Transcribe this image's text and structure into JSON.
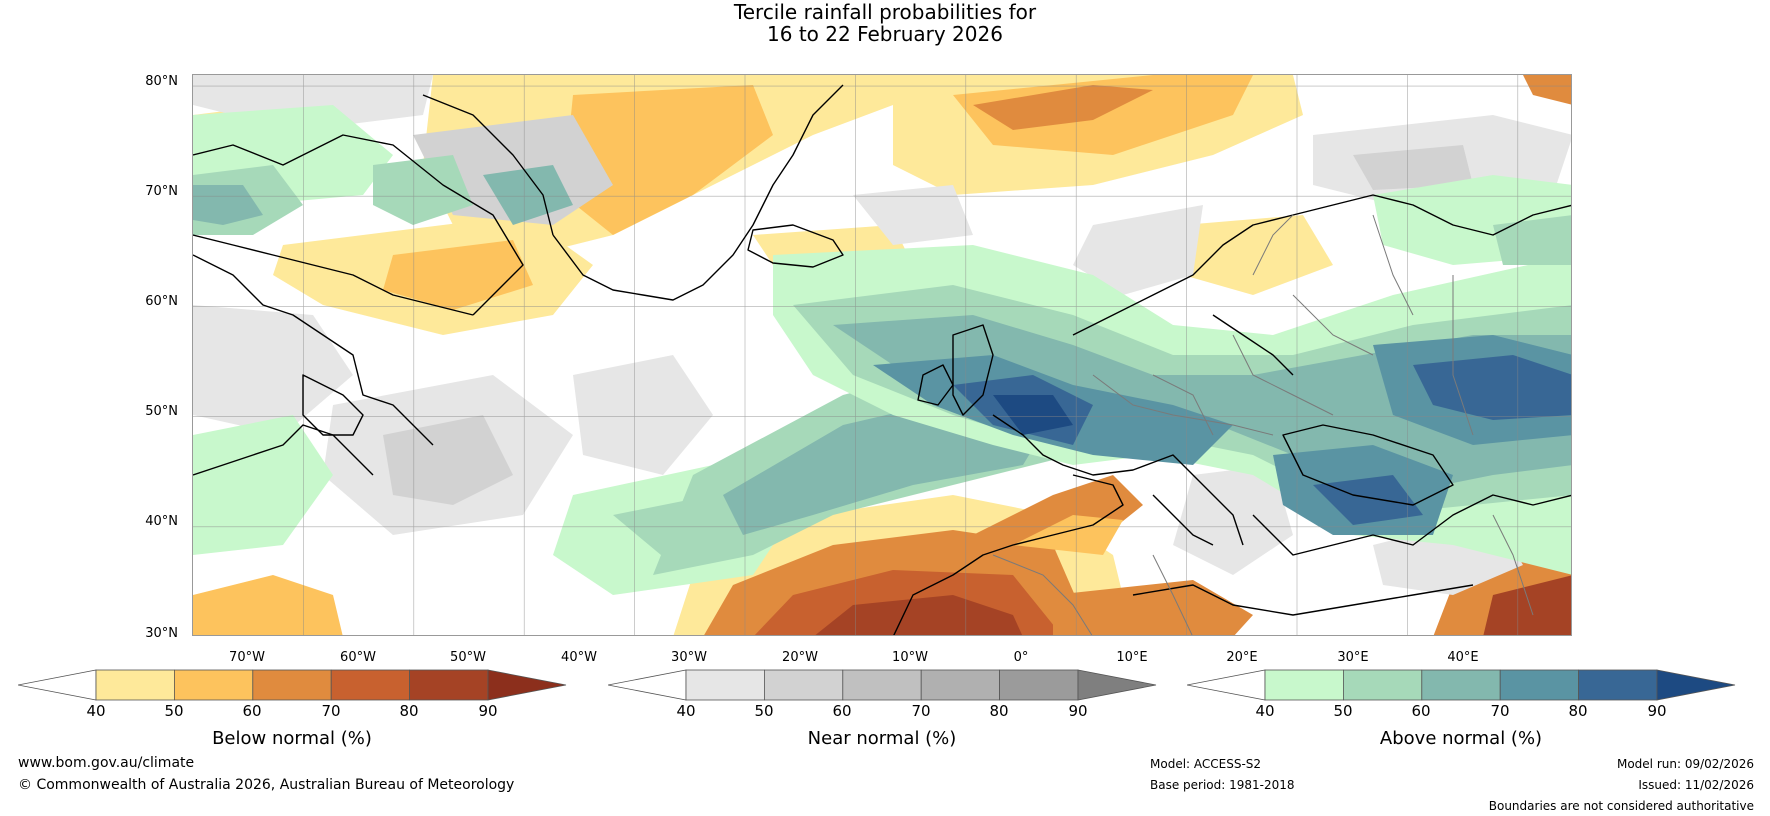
{
  "title": {
    "line1": "Tercile rainfall probabilities for",
    "line2": "16 to 22 February 2026"
  },
  "map": {
    "lat_labels": [
      "80°N",
      "70°N",
      "60°N",
      "50°N",
      "40°N",
      "30°N"
    ],
    "lon_labels": [
      "70°W",
      "60°W",
      "50°W",
      "40°W",
      "30°W",
      "20°W",
      "10°W",
      "0°",
      "10°E",
      "20°E",
      "30°E",
      "40°E"
    ],
    "lat_range": [
      30,
      81
    ],
    "lon_range": [
      -80,
      45
    ]
  },
  "colorbars": [
    {
      "name": "Below normal (%)",
      "ticks": [
        "40",
        "50",
        "60",
        "70",
        "80",
        "90"
      ],
      "colors": [
        "#ffffff",
        "#fee99a",
        "#fdc35d",
        "#e08b3e",
        "#c8612f",
        "#a54325",
        "#8c2f1c"
      ]
    },
    {
      "name": "Near normal (%)",
      "ticks": [
        "40",
        "50",
        "60",
        "70",
        "80",
        "90"
      ],
      "colors": [
        "#ffffff",
        "#e6e6e6",
        "#d2d2d2",
        "#c0c0c0",
        "#b0b0b0",
        "#9b9b9b",
        "#7f7f7f"
      ]
    },
    {
      "name": "Above normal (%)",
      "ticks": [
        "40",
        "50",
        "60",
        "70",
        "80",
        "90"
      ],
      "colors": [
        "#ffffff",
        "#c8f8cc",
        "#a6d9b9",
        "#83b8ae",
        "#5a94a3",
        "#386795",
        "#1d4a82"
      ]
    }
  ],
  "footer": {
    "website": "www.bom.gov.au/climate",
    "copyright": "© Commonwealth of Australia 2026, Australian Bureau of Meteorology",
    "model": "Model: ACCESS-S2",
    "base_period": "Base period: 1981-2018",
    "model_run": "Model run: 09/02/2026",
    "issued": "Issued: 11/02/2026",
    "disclaimer": "Boundaries are not considered authoritative"
  }
}
